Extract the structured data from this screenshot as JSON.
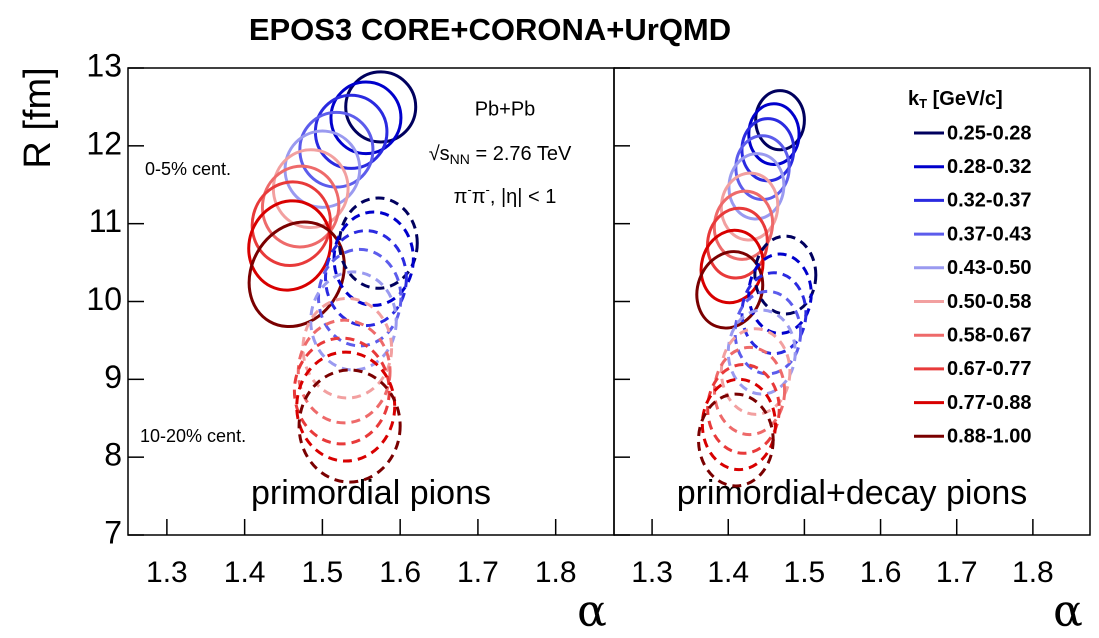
{
  "title": "EPOS3 CORE+CORONA+UrQMD",
  "legend": {
    "title": [
      "k",
      "T",
      " [GeV/c]"
    ],
    "corner": "upper right",
    "entries": [
      {
        "name": "0.25-0.28",
        "color": "#00005e"
      },
      {
        "name": "0.28-0.32",
        "color": "#0000cc"
      },
      {
        "name": "0.32-0.37",
        "color": "#2a2ae0"
      },
      {
        "name": "0.37-0.43",
        "color": "#5c5cec"
      },
      {
        "name": "0.43-0.50",
        "color": "#9a9af0"
      },
      {
        "name": "0.50-0.58",
        "color": "#f2a0a0"
      },
      {
        "name": "0.58-0.67",
        "color": "#ee6a6a"
      },
      {
        "name": "0.67-0.77",
        "color": "#e83a3a"
      },
      {
        "name": "0.77-0.88",
        "color": "#d80000"
      },
      {
        "name": "0.88-1.00",
        "color": "#7a0000"
      }
    ]
  },
  "chart_data": [
    {
      "type": "ellipse",
      "ylabel": "R [fm]",
      "xlabel": "α",
      "label": "primordial pions",
      "xlim": [
        1.25,
        1.875
      ],
      "ylim": [
        7,
        13
      ],
      "xticks": [
        1.3,
        1.4,
        1.5,
        1.6,
        1.7,
        1.8
      ],
      "yticks": [
        7,
        8,
        9,
        10,
        11,
        12,
        13
      ],
      "annotations": {
        "system": "Pb+Pb",
        "energy": [
          "√s",
          "NN",
          " = 2.76 TeV"
        ],
        "particles": [
          "π",
          "-",
          "π",
          "-",
          ", |η| < 1"
        ]
      },
      "groups": [
        {
          "label": "0-5% cent.",
          "dashed": false,
          "ellipses": [
            {
              "alpha": 1.575,
              "R": 12.5,
              "d_alpha": 0.045,
              "d_R": 0.45,
              "angle": 0
            },
            {
              "alpha": 1.556,
              "R": 12.36,
              "d_alpha": 0.045,
              "d_R": 0.46,
              "angle": 0
            },
            {
              "alpha": 1.537,
              "R": 12.18,
              "d_alpha": 0.046,
              "d_R": 0.47,
              "angle": 0
            },
            {
              "alpha": 1.518,
              "R": 11.95,
              "d_alpha": 0.047,
              "d_R": 0.48,
              "angle": 0
            },
            {
              "alpha": 1.5,
              "R": 11.7,
              "d_alpha": 0.048,
              "d_R": 0.49,
              "angle": 5
            },
            {
              "alpha": 1.485,
              "R": 11.45,
              "d_alpha": 0.048,
              "d_R": 0.5,
              "angle": 5
            },
            {
              "alpha": 1.472,
              "R": 11.22,
              "d_alpha": 0.049,
              "d_R": 0.52,
              "angle": 10
            },
            {
              "alpha": 1.46,
              "R": 11.0,
              "d_alpha": 0.05,
              "d_R": 0.54,
              "angle": 15
            },
            {
              "alpha": 1.458,
              "R": 10.72,
              "d_alpha": 0.052,
              "d_R": 0.58,
              "angle": 20
            },
            {
              "alpha": 1.467,
              "R": 10.35,
              "d_alpha": 0.058,
              "d_R": 0.7,
              "angle": 30
            }
          ]
        },
        {
          "label": "10-20% cent.",
          "dashed": true,
          "ellipses": [
            {
              "alpha": 1.572,
              "R": 10.75,
              "d_alpha": 0.05,
              "d_R": 0.58,
              "angle": 0
            },
            {
              "alpha": 1.566,
              "R": 10.55,
              "d_alpha": 0.051,
              "d_R": 0.6,
              "angle": 0
            },
            {
              "alpha": 1.556,
              "R": 10.3,
              "d_alpha": 0.052,
              "d_R": 0.61,
              "angle": 0
            },
            {
              "alpha": 1.548,
              "R": 10.05,
              "d_alpha": 0.053,
              "d_R": 0.62,
              "angle": 0
            },
            {
              "alpha": 1.54,
              "R": 9.75,
              "d_alpha": 0.055,
              "d_R": 0.63,
              "angle": 0
            },
            {
              "alpha": 1.532,
              "R": 9.4,
              "d_alpha": 0.057,
              "d_R": 0.64,
              "angle": 0
            },
            {
              "alpha": 1.528,
              "R": 9.1,
              "d_alpha": 0.059,
              "d_R": 0.66,
              "angle": 0
            },
            {
              "alpha": 1.525,
              "R": 8.85,
              "d_alpha": 0.061,
              "d_R": 0.68,
              "angle": 0
            },
            {
              "alpha": 1.53,
              "R": 8.65,
              "d_alpha": 0.063,
              "d_R": 0.7,
              "angle": 0
            },
            {
              "alpha": 1.535,
              "R": 8.4,
              "d_alpha": 0.065,
              "d_R": 0.72,
              "angle": 0
            }
          ]
        }
      ]
    },
    {
      "type": "ellipse",
      "xlabel": "α",
      "label": "primordial+decay pions",
      "xlim": [
        1.25,
        1.875
      ],
      "ylim": [
        7,
        13
      ],
      "xticks": [
        1.3,
        1.4,
        1.5,
        1.6,
        1.7,
        1.8
      ],
      "yticks": [
        7,
        8,
        9,
        10,
        11,
        12,
        13
      ],
      "groups": [
        {
          "dashed": false,
          "ellipses": [
            {
              "alpha": 1.468,
              "R": 12.33,
              "d_alpha": 0.032,
              "d_R": 0.38,
              "angle": 0
            },
            {
              "alpha": 1.46,
              "R": 12.15,
              "d_alpha": 0.033,
              "d_R": 0.39,
              "angle": 0
            },
            {
              "alpha": 1.452,
              "R": 11.95,
              "d_alpha": 0.034,
              "d_R": 0.4,
              "angle": 0
            },
            {
              "alpha": 1.445,
              "R": 11.72,
              "d_alpha": 0.035,
              "d_R": 0.41,
              "angle": 0
            },
            {
              "alpha": 1.437,
              "R": 11.48,
              "d_alpha": 0.036,
              "d_R": 0.42,
              "angle": 5
            },
            {
              "alpha": 1.428,
              "R": 11.22,
              "d_alpha": 0.037,
              "d_R": 0.43,
              "angle": 5
            },
            {
              "alpha": 1.42,
              "R": 10.98,
              "d_alpha": 0.038,
              "d_R": 0.44,
              "angle": 10
            },
            {
              "alpha": 1.412,
              "R": 10.75,
              "d_alpha": 0.039,
              "d_R": 0.45,
              "angle": 10
            },
            {
              "alpha": 1.405,
              "R": 10.45,
              "d_alpha": 0.04,
              "d_R": 0.47,
              "angle": 15
            },
            {
              "alpha": 1.402,
              "R": 10.15,
              "d_alpha": 0.042,
              "d_R": 0.5,
              "angle": 20
            }
          ]
        },
        {
          "dashed": true,
          "ellipses": [
            {
              "alpha": 1.475,
              "R": 10.34,
              "d_alpha": 0.04,
              "d_R": 0.5,
              "angle": 0
            },
            {
              "alpha": 1.468,
              "R": 10.1,
              "d_alpha": 0.041,
              "d_R": 0.51,
              "angle": 0
            },
            {
              "alpha": 1.46,
              "R": 9.85,
              "d_alpha": 0.042,
              "d_R": 0.52,
              "angle": 0
            },
            {
              "alpha": 1.452,
              "R": 9.6,
              "d_alpha": 0.043,
              "d_R": 0.53,
              "angle": 0
            },
            {
              "alpha": 1.444,
              "R": 9.35,
              "d_alpha": 0.044,
              "d_R": 0.54,
              "angle": 0
            },
            {
              "alpha": 1.436,
              "R": 9.1,
              "d_alpha": 0.045,
              "d_R": 0.55,
              "angle": 0
            },
            {
              "alpha": 1.428,
              "R": 8.85,
              "d_alpha": 0.046,
              "d_R": 0.56,
              "angle": 0
            },
            {
              "alpha": 1.42,
              "R": 8.62,
              "d_alpha": 0.047,
              "d_R": 0.57,
              "angle": 0
            },
            {
              "alpha": 1.414,
              "R": 8.42,
              "d_alpha": 0.048,
              "d_R": 0.58,
              "angle": 0
            },
            {
              "alpha": 1.41,
              "R": 8.22,
              "d_alpha": 0.049,
              "d_R": 0.59,
              "angle": 0
            }
          ]
        }
      ]
    }
  ]
}
